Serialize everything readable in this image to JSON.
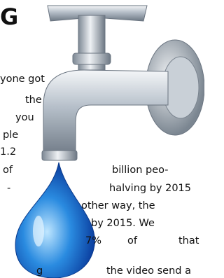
{
  "heading": "G",
  "lines": [
    "yone got",
    "the",
    "you",
    "ple",
    "1.2",
    "billion peo-",
    "of",
    "halving by 2015",
    "-",
    "other way, the",
    "by 2015. We",
    "7%",
    "of",
    "that",
    "g",
    "the video send a"
  ]
}
